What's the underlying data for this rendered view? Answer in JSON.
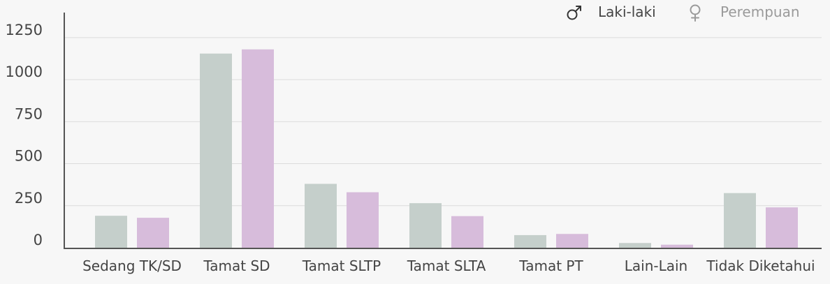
{
  "chart_data": {
    "type": "bar",
    "categories": [
      "Sedang TK/SD",
      "Tamat SD",
      "Tamat SLTP",
      "Tamat SLTA",
      "Tamat PT",
      "Lain-Lain",
      "Tidak Diketahui"
    ],
    "series": [
      {
        "name": "Laki-laki",
        "color": "#c5cfcb",
        "icon": "male-symbol-icon",
        "values": [
          190,
          1155,
          380,
          265,
          75,
          28,
          325
        ]
      },
      {
        "name": "Perempuan",
        "color": "#d7bcdb",
        "icon": "female-symbol-icon",
        "values": [
          178,
          1180,
          330,
          188,
          82,
          18,
          240
        ]
      }
    ],
    "yticks": [
      0,
      250,
      500,
      750,
      1000,
      1250
    ],
    "ylim": [
      0,
      1250
    ],
    "grid": true,
    "legend_position": "top-right",
    "colors": {
      "axis": "#555555",
      "grid": "#dcdcdc",
      "legend_text_active": "#444444",
      "legend_text_muted": "#9a9a9a"
    }
  }
}
